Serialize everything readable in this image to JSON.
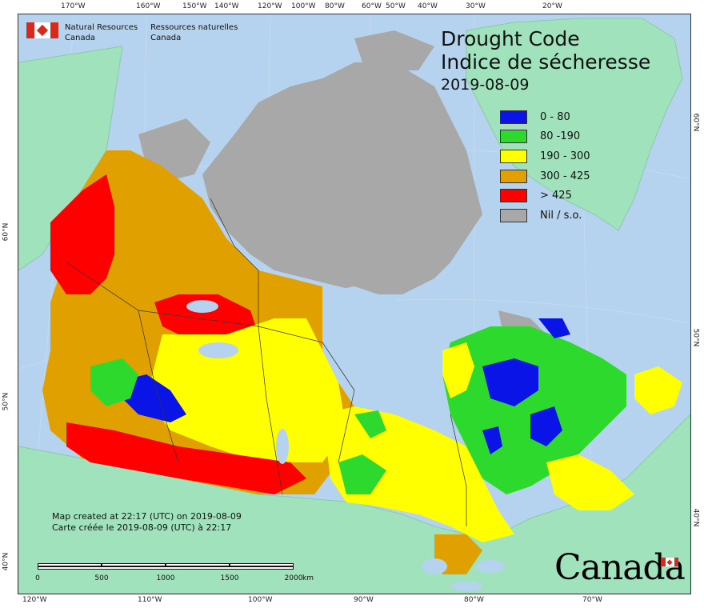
{
  "map": {
    "title_en": "Drought Code",
    "title_fr": "Indice de sécheresse",
    "date": "2019-08-09",
    "legend": [
      {
        "label": "0 - 80",
        "color": "#0a14e6"
      },
      {
        "label": "80 -190",
        "color": "#2ed92e"
      },
      {
        "label": "190 - 300",
        "color": "#ffff00"
      },
      {
        "label": "300 - 425",
        "color": "#e0a000"
      },
      {
        "label": "> 425",
        "color": "#ff0000"
      },
      {
        "label": "Nil / s.o.",
        "color": "#a8a8a8"
      }
    ],
    "colors": {
      "water": "#b5d2ee",
      "foreign_land": "#9fe2bb",
      "nodata": "#a8a8a8",
      "border": "#333333"
    },
    "agency": {
      "en_line1": "Natural Resources",
      "en_line2": "Canada",
      "fr_line1": "Ressources naturelles",
      "fr_line2": "Canada"
    },
    "credit": {
      "en": "Map created at 22:17 (UTC) on 2019-08-09",
      "fr": "Carte créée le 2019-08-09 (UTC) à 22:17"
    },
    "scale": {
      "labels": [
        "0",
        "500",
        "1000",
        "1500",
        "2000"
      ],
      "unit": "km"
    },
    "wordmark": "Canada",
    "top_ticks": [
      "170°W",
      "160°W",
      "150°W",
      "140°W",
      "120°W",
      "100°W",
      "80°W",
      "60°W",
      "50°W",
      "40°W",
      "30°W",
      "20°W"
    ],
    "bottom_ticks": [
      "120°W",
      "110°W",
      "100°W",
      "90°W",
      "80°W",
      "70°W"
    ],
    "left_ticks": [
      "60°N",
      "50°N",
      "40°N"
    ],
    "right_ticks": [
      "60°N",
      "50°N",
      "40°N"
    ]
  }
}
